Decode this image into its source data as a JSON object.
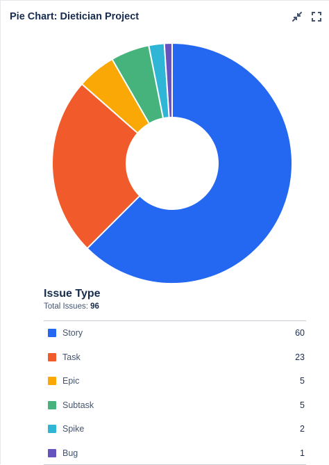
{
  "gadget": {
    "title": "Pie Chart: Dietician Project",
    "minimize_icon": "minimize-icon",
    "fullscreen_icon": "fullscreen-icon"
  },
  "summary": {
    "heading": "Issue Type",
    "total_label": "Total Issues: ",
    "total_value": "96"
  },
  "chart_data": {
    "type": "pie",
    "donut": true,
    "categories": [
      "Story",
      "Task",
      "Epic",
      "Subtask",
      "Spike",
      "Bug"
    ],
    "values": [
      60,
      23,
      5,
      5,
      2,
      1
    ],
    "colors": [
      "#2468f2",
      "#f15a2b",
      "#f9a806",
      "#46b37c",
      "#2fb6d6",
      "#6554c0"
    ],
    "title": "",
    "legend": "below"
  },
  "legend": [
    {
      "label": "Story",
      "count": "60",
      "color": "#2468f2"
    },
    {
      "label": "Task",
      "count": "23",
      "color": "#f15a2b"
    },
    {
      "label": "Epic",
      "count": "5",
      "color": "#f9a806"
    },
    {
      "label": "Subtask",
      "count": "5",
      "color": "#46b37c"
    },
    {
      "label": "Spike",
      "count": "2",
      "color": "#2fb6d6"
    },
    {
      "label": "Bug",
      "count": "1",
      "color": "#6554c0"
    }
  ]
}
